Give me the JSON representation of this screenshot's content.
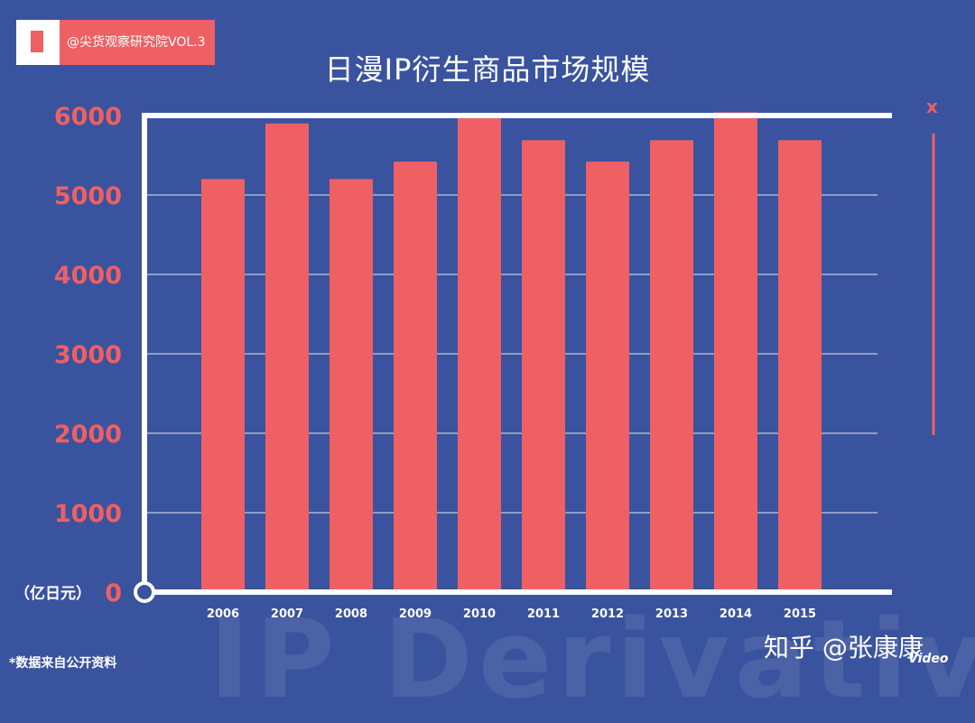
{
  "badge": {
    "label": "@尖货观察研究院VOL.3"
  },
  "watermark": "IP Derivative",
  "footnote": "*数据来自公开资料",
  "credit": {
    "site": "知乎 @张康康",
    "video": "Video"
  },
  "side_marker": "x",
  "colors": {
    "background": "#3a539e",
    "bar": "#ee6063",
    "axis": "#ffffff",
    "accent": "#ee6063"
  },
  "chart_data": {
    "type": "bar",
    "title": "日漫IP衍生商品市场规模",
    "unit_label": "（亿日元）",
    "categories": [
      "2006",
      "2007",
      "2008",
      "2009",
      "2010",
      "2011",
      "2012",
      "2013",
      "2014",
      "2015"
    ],
    "values": [
      5200,
      5900,
      5200,
      5420,
      5970,
      5690,
      5420,
      5690,
      6040,
      5690
    ],
    "yticks": [
      0,
      1000,
      2000,
      3000,
      4000,
      5000,
      6000
    ],
    "ylim": [
      0,
      6000
    ],
    "grid": true,
    "legend": "none"
  }
}
